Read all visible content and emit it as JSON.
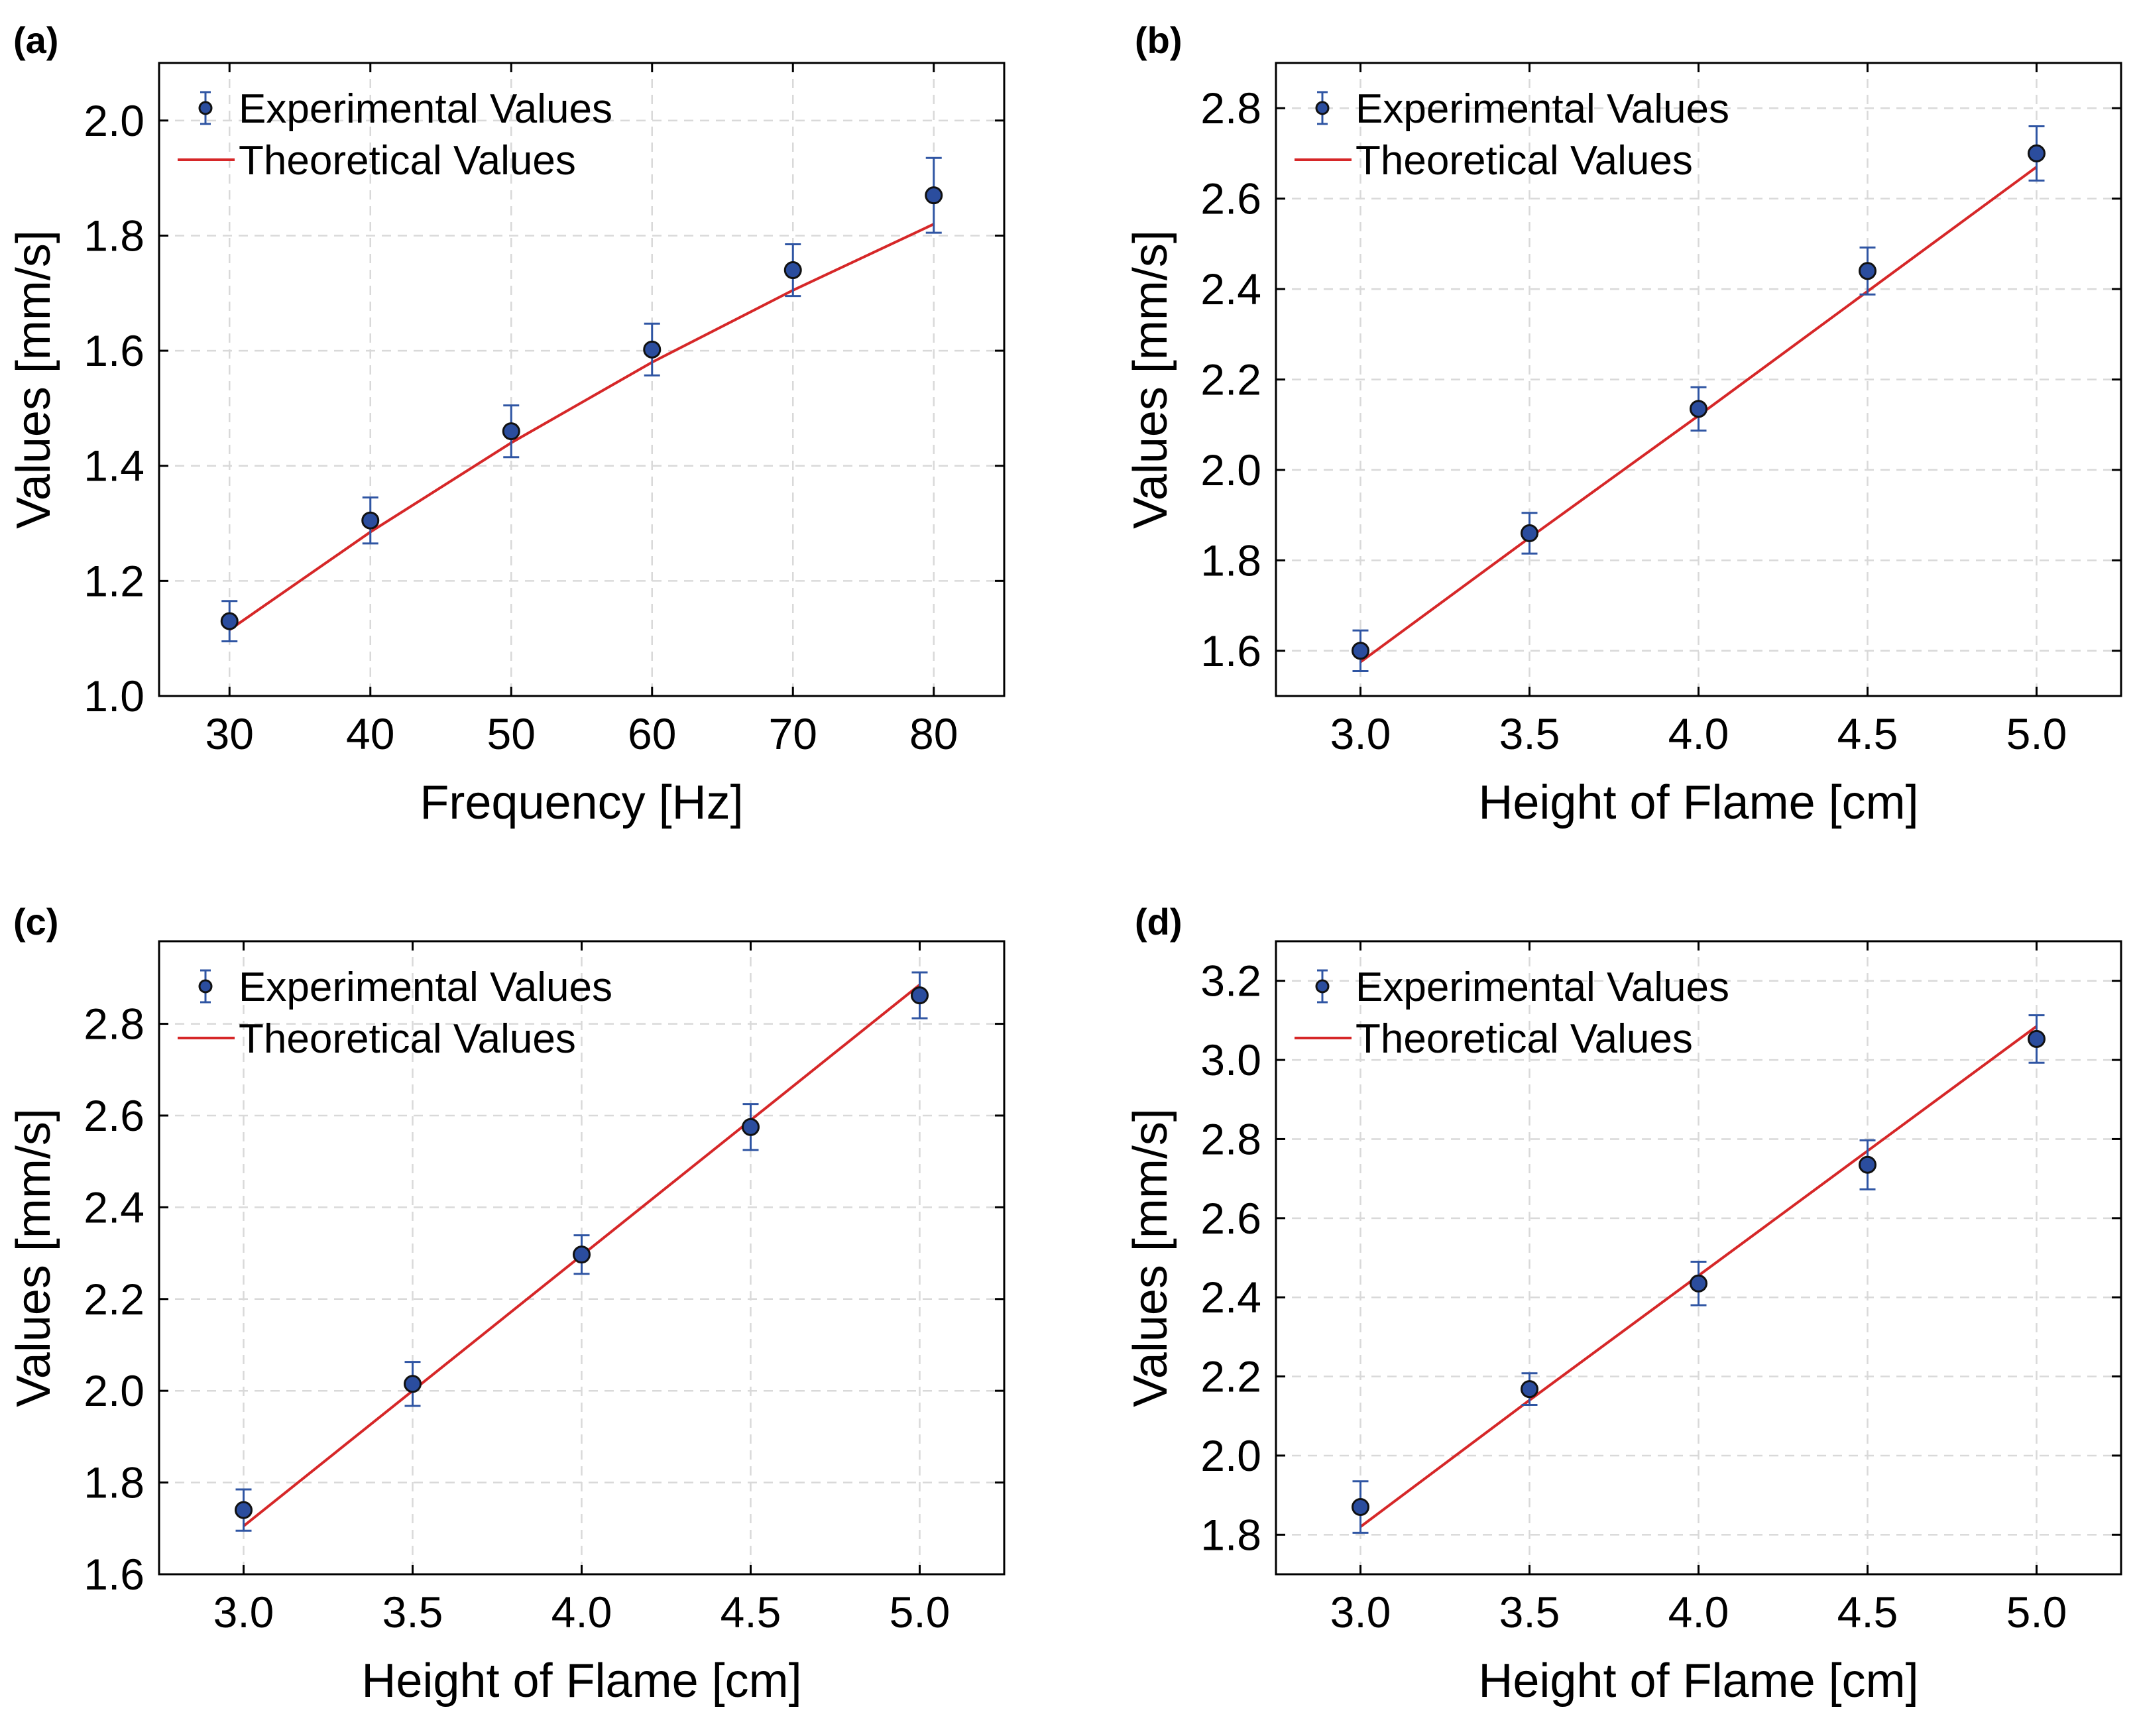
{
  "colors": {
    "experimental_marker": "#2b4d9e",
    "error_bar": "#2f55a3",
    "theoretical_line": "#d62728"
  },
  "chart_data": [
    {
      "panel": "(a)",
      "type": "scatter",
      "xlabel": "Frequency [Hz]",
      "ylabel": "Values [mm/s]",
      "xlim": [
        25,
        85
      ],
      "ylim": [
        1.0,
        2.1
      ],
      "xticks": [
        30,
        40,
        50,
        60,
        70,
        80
      ],
      "xtick_labels": [
        "30",
        "40",
        "50",
        "60",
        "70",
        "80"
      ],
      "yticks": [
        1.0,
        1.2,
        1.4,
        1.6,
        1.8,
        2.0
      ],
      "ytick_labels": [
        "1.0",
        "1.2",
        "1.4",
        "1.6",
        "1.8",
        "2.0"
      ],
      "grid": true,
      "legend": "top-left",
      "series": [
        {
          "name": "Experimental Values",
          "kind": "errorbar",
          "x": [
            30,
            40,
            50,
            60,
            70,
            80
          ],
          "y": [
            1.13,
            1.305,
            1.46,
            1.602,
            1.74,
            1.87
          ],
          "yerr": [
            0.035,
            0.04,
            0.045,
            0.045,
            0.045,
            0.065
          ]
        },
        {
          "name": "Theoretical Values",
          "kind": "line",
          "x": [
            30,
            40,
            50,
            60,
            70,
            80
          ],
          "y": [
            1.115,
            1.285,
            1.44,
            1.58,
            1.705,
            1.82
          ]
        }
      ]
    },
    {
      "panel": "(b)",
      "type": "scatter",
      "xlabel": "Height of Flame [cm]",
      "ylabel": "Values [mm/s]",
      "xlim": [
        2.75,
        5.25
      ],
      "ylim": [
        1.5,
        2.9
      ],
      "xticks": [
        3.0,
        3.5,
        4.0,
        4.5,
        5.0
      ],
      "xtick_labels": [
        "3.0",
        "3.5",
        "4.0",
        "4.5",
        "5.0"
      ],
      "yticks": [
        1.6,
        1.8,
        2.0,
        2.2,
        2.4,
        2.6,
        2.8
      ],
      "ytick_labels": [
        "1.6",
        "1.8",
        "2.0",
        "2.2",
        "2.4",
        "2.6",
        "2.8"
      ],
      "grid": true,
      "legend": "top-left",
      "series": [
        {
          "name": "Experimental Values",
          "kind": "errorbar",
          "x": [
            3.0,
            3.5,
            4.0,
            4.5,
            5.0
          ],
          "y": [
            1.6,
            1.86,
            2.135,
            2.44,
            2.7
          ],
          "yerr": [
            0.045,
            0.045,
            0.048,
            0.052,
            0.06
          ]
        },
        {
          "name": "Theoretical Values",
          "kind": "line",
          "x": [
            3.0,
            3.5,
            4.0,
            4.5,
            5.0
          ],
          "y": [
            1.575,
            1.85,
            2.12,
            2.395,
            2.67
          ]
        }
      ]
    },
    {
      "panel": "(c)",
      "type": "scatter",
      "xlabel": "Height of Flame [cm]",
      "ylabel": "Values [mm/s]",
      "xlim": [
        2.75,
        5.25
      ],
      "ylim": [
        1.6,
        2.98
      ],
      "xticks": [
        3.0,
        3.5,
        4.0,
        4.5,
        5.0
      ],
      "xtick_labels": [
        "3.0",
        "3.5",
        "4.0",
        "4.5",
        "5.0"
      ],
      "yticks": [
        1.6,
        1.8,
        2.0,
        2.2,
        2.4,
        2.6,
        2.8
      ],
      "ytick_labels": [
        "1.6",
        "1.8",
        "2.0",
        "2.2",
        "2.4",
        "2.6",
        "2.8"
      ],
      "grid": true,
      "legend": "top-left",
      "series": [
        {
          "name": "Experimental Values",
          "kind": "errorbar",
          "x": [
            3.0,
            3.5,
            4.0,
            4.5,
            5.0
          ],
          "y": [
            1.74,
            2.015,
            2.297,
            2.575,
            2.862
          ],
          "yerr": [
            0.045,
            0.048,
            0.042,
            0.05,
            0.05
          ]
        },
        {
          "name": "Theoretical Values",
          "kind": "line",
          "x": [
            3.0,
            3.5,
            4.0,
            4.5,
            5.0
          ],
          "y": [
            1.705,
            2.0,
            2.295,
            2.59,
            2.885
          ]
        }
      ]
    },
    {
      "panel": "(d)",
      "type": "scatter",
      "xlabel": "Height of Flame [cm]",
      "ylabel": "Values [mm/s]",
      "xlim": [
        2.75,
        5.25
      ],
      "ylim": [
        1.7,
        3.3
      ],
      "xticks": [
        3.0,
        3.5,
        4.0,
        4.5,
        5.0
      ],
      "xtick_labels": [
        "3.0",
        "3.5",
        "4.0",
        "4.5",
        "5.0"
      ],
      "yticks": [
        1.8,
        2.0,
        2.2,
        2.4,
        2.6,
        2.8,
        3.0,
        3.2
      ],
      "ytick_labels": [
        "1.8",
        "2.0",
        "2.2",
        "2.4",
        "2.6",
        "2.8",
        "3.0",
        "3.2"
      ],
      "grid": true,
      "legend": "top-left",
      "series": [
        {
          "name": "Experimental Values",
          "kind": "errorbar",
          "x": [
            3.0,
            3.5,
            4.0,
            4.5,
            5.0
          ],
          "y": [
            1.87,
            2.168,
            2.435,
            2.735,
            3.053
          ],
          "yerr": [
            0.065,
            0.04,
            0.055,
            0.062,
            0.06
          ]
        },
        {
          "name": "Theoretical Values",
          "kind": "line",
          "x": [
            3.0,
            3.5,
            4.0,
            4.5,
            5.0
          ],
          "y": [
            1.82,
            2.14,
            2.455,
            2.77,
            3.085
          ]
        }
      ]
    }
  ]
}
